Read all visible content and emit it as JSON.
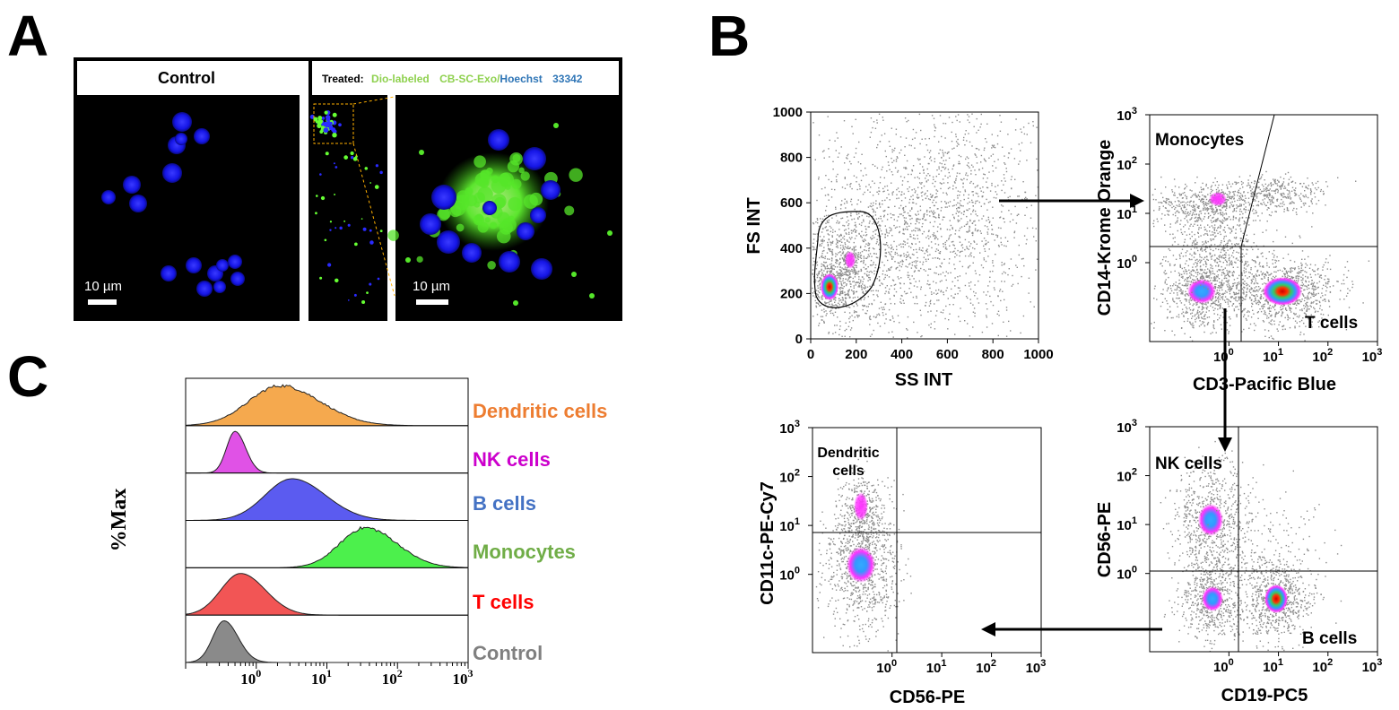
{
  "panels": {
    "a": "A",
    "b": "B",
    "c": "C"
  },
  "panel_a": {
    "control_title": "Control",
    "treated_prefix": "Treated:",
    "treated_dio": "Dio-labeled",
    "treated_exo": "CB-SC-Exo/",
    "treated_hoechst": "Hoechst",
    "treated_num": "33342",
    "scale_left": "10 µm",
    "scale_right": "10 µm",
    "colors": {
      "dio": "#8fd14f",
      "hoechst": "#2e75b6",
      "nuclei": "#1a1aff",
      "exo": "#66ff33"
    }
  },
  "panel_b": {
    "plot1": {
      "xlabel": "SS INT",
      "ylabel": "FS INT",
      "xticks": [
        "0",
        "200",
        "400",
        "600",
        "800",
        "1000"
      ],
      "yticks": [
        "0",
        "200",
        "400",
        "600",
        "800",
        "1000"
      ]
    },
    "plot2": {
      "xlabel": "CD3-Pacific Blue",
      "ylabel": "CD14-Krome Orange",
      "gate_top": "Monocytes",
      "gate_bottom": "T cells"
    },
    "plot3": {
      "xlabel": "CD19-PC5",
      "ylabel": "CD56-PE",
      "gate_top": "NK cells",
      "gate_bottom": "B cells"
    },
    "plot4": {
      "xlabel": "CD56-PE",
      "ylabel": "CD11c-PE-Cy7",
      "gate_line1": "Dendritic",
      "gate_line2": "cells"
    },
    "log_ticks": [
      "10",
      "0",
      "1",
      "2",
      "3"
    ]
  },
  "chart_data": {
    "type": "histogram",
    "title": "",
    "ylabel": "%Max",
    "xscale": "log",
    "xlim": [
      0.1,
      1000
    ],
    "xticks": [
      "10^0",
      "10^1",
      "10^2",
      "10^3"
    ],
    "series": [
      {
        "name": "Dendritic cells",
        "color": "#f5a94e",
        "label_color": "#ed7d31",
        "peak": 2.2,
        "width": 0.45,
        "noisy": true
      },
      {
        "name": "NK cells",
        "color": "#e052e6",
        "label_color": "#cc00cc",
        "peak": 0.5,
        "width": 0.12,
        "noisy": false
      },
      {
        "name": "B cells",
        "color": "#5b5bf0",
        "label_color": "#4472c4",
        "peak": 3.2,
        "width": 0.38,
        "noisy": false
      },
      {
        "name": "Monocytes",
        "color": "#4cf04c",
        "label_color": "#70ad47",
        "peak": 35,
        "width": 0.36,
        "noisy": true
      },
      {
        "name": "T cells",
        "color": "#f25555",
        "label_color": "#ff0000",
        "peak": 0.6,
        "width": 0.28,
        "noisy": false
      },
      {
        "name": "Control",
        "color": "#8a8a8a",
        "label_color": "#808080",
        "peak": 0.35,
        "width": 0.16,
        "noisy": false
      }
    ]
  }
}
